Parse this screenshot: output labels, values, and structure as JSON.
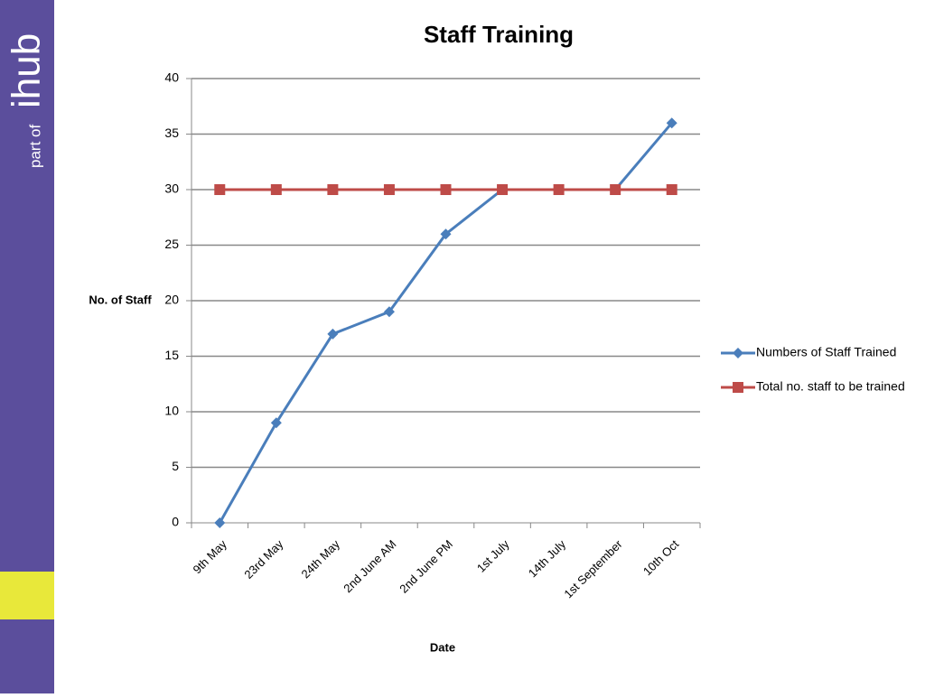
{
  "sidebar": {
    "brand_prefix": "part of",
    "brand": "ihub"
  },
  "chart_data": {
    "type": "line",
    "title": "Staff Training",
    "x_label": "Date",
    "y_label": "No. of Staff",
    "categories": [
      "9th May",
      "23rd May",
      "24th May",
      "2nd June AM",
      "2nd June PM",
      "1st July",
      "14th July",
      "1st September",
      "10th Oct"
    ],
    "series": [
      {
        "name": "Numbers of Staff Trained",
        "color": "#4a7ebb",
        "marker": "diamond",
        "values": [
          0,
          9,
          17,
          19,
          26,
          30,
          30,
          30,
          36
        ]
      },
      {
        "name": "Total no. staff to be trained",
        "color": "#be4b48",
        "marker": "square",
        "values": [
          30,
          30,
          30,
          30,
          30,
          30,
          30,
          30,
          30
        ]
      }
    ],
    "ylim": [
      0,
      40
    ],
    "yticks": [
      0,
      5,
      10,
      15,
      20,
      25,
      30,
      35,
      40
    ],
    "grid": true,
    "legend": "right"
  }
}
